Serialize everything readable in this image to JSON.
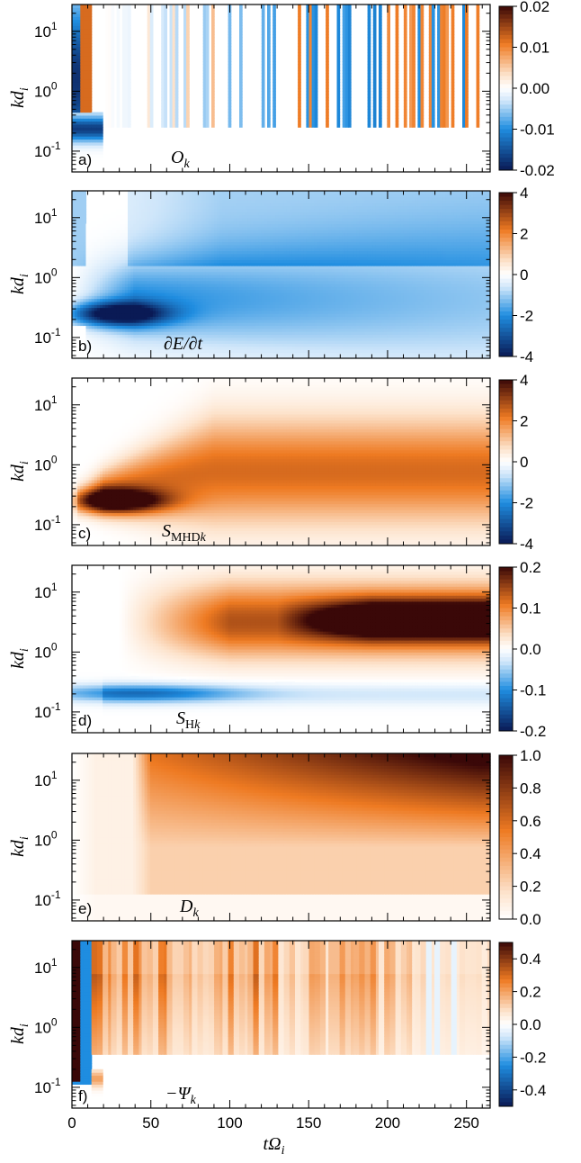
{
  "colors": {
    "neg_dark": "#0a1a55",
    "neg_mid": "#1f8de0",
    "neg_light": "#cfe6fa",
    "zero": "#ffffff",
    "pos_light": "#fde3cc",
    "pos_mid": "#ee7a22",
    "pos_dark": "#3a0808"
  },
  "xaxis": {
    "label_main": "tΩ",
    "label_sub": "i",
    "range": [
      0,
      265
    ],
    "ticks": [
      "0",
      "50",
      "100",
      "150",
      "200",
      "250"
    ],
    "tick_values": [
      0,
      50,
      100,
      150,
      200,
      250
    ]
  },
  "yaxis": {
    "label_main": "kd",
    "label_sub": "i",
    "scale": "log",
    "range": [
      0.045,
      28
    ],
    "tick_values": [
      0.1,
      1,
      10
    ],
    "tick_base": "10",
    "tick_exponents": [
      "-1",
      "0",
      "1"
    ]
  },
  "chart_data": [
    {
      "type": "heatmap",
      "panel": "a)",
      "quantity": "O",
      "quantity_sub": "k",
      "pattern": "oscillatory",
      "colorbar": {
        "range": [
          -0.02,
          0.02
        ],
        "ticks": [
          "0.02",
          "0.01",
          "0.00",
          "-0.01",
          "-0.02"
        ],
        "tick_values": [
          0.02,
          0.01,
          0.0,
          -0.01,
          -0.02
        ]
      }
    },
    {
      "type": "heatmap",
      "panel": "b)",
      "quantity": "∂E/∂t",
      "quantity_sub": "",
      "pattern": "energy_rate",
      "colorbar": {
        "range": [
          -4,
          4
        ],
        "ticks": [
          "4",
          "2",
          "0",
          "-2",
          "-4"
        ],
        "tick_values": [
          4,
          2,
          0,
          -2,
          -4
        ]
      }
    },
    {
      "type": "heatmap",
      "panel": "c)",
      "quantity": "S",
      "quantity_sub": "MHD",
      "quantity_sub2": "k",
      "pattern": "mhd_transfer",
      "colorbar": {
        "range": [
          -4,
          4
        ],
        "ticks": [
          "4",
          "2",
          "0",
          "-2",
          "-4"
        ],
        "tick_values": [
          4,
          2,
          0,
          -2,
          -4
        ]
      }
    },
    {
      "type": "heatmap",
      "panel": "d)",
      "quantity": "S",
      "quantity_sub": "H",
      "quantity_sub2": "k",
      "pattern": "hall_transfer",
      "colorbar": {
        "range": [
          -0.2,
          0.2
        ],
        "ticks": [
          "0.2",
          "0.1",
          "0.0",
          "-0.1",
          "-0.2"
        ],
        "tick_values": [
          0.2,
          0.1,
          0.0,
          -0.1,
          -0.2
        ]
      }
    },
    {
      "type": "heatmap",
      "panel": "e)",
      "quantity": "D",
      "quantity_sub": "k",
      "pattern": "dissipation",
      "colorbar": {
        "range": [
          0,
          1
        ],
        "ticks": [
          "1.0",
          "0.8",
          "0.6",
          "0.4",
          "0.2",
          "0.0"
        ],
        "tick_values": [
          1.0,
          0.8,
          0.6,
          0.4,
          0.2,
          0.0
        ]
      }
    },
    {
      "type": "heatmap",
      "panel": "f)",
      "quantity": "−Ψ",
      "quantity_sub": "k",
      "pattern": "pressure_strain",
      "colorbar": {
        "range": [
          -0.5,
          0.5
        ],
        "ticks": [
          "0.4",
          "0.2",
          "0.0",
          "-0.2",
          "-0.4"
        ],
        "tick_values": [
          0.4,
          0.2,
          0.0,
          -0.2,
          -0.4
        ]
      }
    }
  ]
}
